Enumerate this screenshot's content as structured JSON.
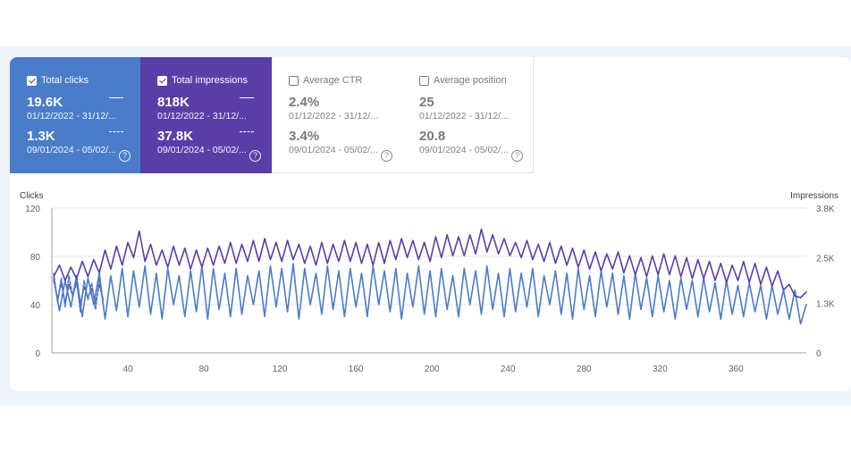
{
  "metrics": [
    {
      "label": "Total clicks",
      "checked": true,
      "value1": "19.6K",
      "date1": "01/12/2022 - 31/12/...",
      "value2": "1.3K",
      "date2": "09/01/2024 - 05/02/...",
      "help": "?"
    },
    {
      "label": "Total impressions",
      "checked": true,
      "value1": "818K",
      "date1": "01/12/2022 - 31/12/...",
      "value2": "37.8K",
      "date2": "09/01/2024 - 05/02/...",
      "help": "?"
    },
    {
      "label": "Average CTR",
      "checked": false,
      "value1": "2.4%",
      "date1": "01/12/2022 - 31/12/...",
      "value2": "3.4%",
      "date2": "09/01/2024 - 05/02/...",
      "help": "?"
    },
    {
      "label": "Average position",
      "checked": false,
      "value1": "25",
      "date1": "01/12/2022 - 31/12/...",
      "value2": "20.8",
      "date2": "09/01/2024 - 05/02/...",
      "help": "?"
    }
  ],
  "colors": {
    "clicks": "#4a7cc9",
    "impressions": "#5a3ea8",
    "grid": "#e6e6e6"
  },
  "chart_data": {
    "type": "line",
    "left_axis": {
      "title": "Clicks",
      "ticks": [
        0,
        40,
        80,
        120
      ],
      "tick_labels": [
        "0",
        "40",
        "80",
        "120"
      ],
      "range": [
        0,
        120
      ]
    },
    "right_axis": {
      "title": "Impressions",
      "ticks": [
        0,
        1300,
        2500,
        3800
      ],
      "tick_labels": [
        "0",
        "1.3K",
        "2.5K",
        "3.8K"
      ],
      "range": [
        0,
        3800
      ]
    },
    "x_axis": {
      "range": [
        0,
        397
      ],
      "ticks": [
        40,
        80,
        120,
        160,
        200,
        240,
        280,
        320,
        360
      ],
      "tick_labels": [
        "40",
        "80",
        "120",
        "160",
        "200",
        "240",
        "280",
        "320",
        "360"
      ]
    },
    "grid": true,
    "series": [
      {
        "name": "Total clicks",
        "axis": "left",
        "style": "solid",
        "x": [
          1,
          4,
          7,
          10,
          13,
          16,
          19,
          22,
          25,
          28,
          31,
          34,
          37,
          40,
          43,
          46,
          49,
          52,
          55,
          58,
          61,
          64,
          67,
          70,
          73,
          76,
          79,
          82,
          85,
          88,
          91,
          94,
          97,
          100,
          103,
          106,
          109,
          112,
          115,
          118,
          121,
          124,
          127,
          130,
          133,
          136,
          139,
          142,
          145,
          148,
          151,
          154,
          157,
          160,
          163,
          166,
          169,
          172,
          175,
          178,
          181,
          184,
          187,
          190,
          193,
          196,
          199,
          202,
          205,
          208,
          211,
          214,
          217,
          220,
          223,
          226,
          229,
          232,
          235,
          238,
          241,
          244,
          247,
          250,
          253,
          256,
          259,
          262,
          265,
          268,
          271,
          274,
          277,
          280,
          283,
          286,
          289,
          292,
          295,
          298,
          301,
          304,
          307,
          310,
          313,
          316,
          319,
          322,
          325,
          328,
          331,
          334,
          337,
          340,
          343,
          346,
          349,
          352,
          355,
          358,
          361,
          364,
          367,
          370,
          373,
          376,
          379,
          382,
          385,
          388,
          391,
          394,
          397
        ],
        "values": [
          62,
          35,
          60,
          38,
          64,
          30,
          62,
          40,
          66,
          28,
          64,
          35,
          70,
          30,
          68,
          38,
          72,
          32,
          66,
          28,
          70,
          40,
          64,
          30,
          68,
          34,
          72,
          28,
          70,
          36,
          66,
          30,
          70,
          32,
          64,
          40,
          68,
          30,
          72,
          38,
          70,
          34,
          74,
          28,
          70,
          40,
          66,
          32,
          72,
          36,
          68,
          30,
          70,
          38,
          66,
          30,
          72,
          40,
          68,
          34,
          70,
          28,
          66,
          38,
          72,
          32,
          68,
          30,
          70,
          36,
          64,
          30,
          70,
          40,
          68,
          32,
          72,
          36,
          66,
          30,
          70,
          34,
          66,
          38,
          70,
          30,
          64,
          40,
          68,
          32,
          66,
          28,
          70,
          36,
          64,
          30,
          68,
          38,
          66,
          32,
          64,
          28,
          66,
          36,
          62,
          30,
          64,
          34,
          60,
          28,
          62,
          36,
          60,
          30,
          62,
          34,
          58,
          28,
          60,
          32,
          56,
          30,
          58,
          34,
          56,
          28,
          56,
          32,
          52,
          28,
          52,
          24,
          40
        ]
      },
      {
        "name": "Total impressions",
        "axis": "right",
        "style": "solid",
        "x": [
          1,
          4,
          7,
          10,
          13,
          16,
          19,
          22,
          25,
          28,
          31,
          34,
          37,
          40,
          43,
          46,
          49,
          52,
          55,
          58,
          61,
          64,
          67,
          70,
          73,
          76,
          79,
          82,
          85,
          88,
          91,
          94,
          97,
          100,
          103,
          106,
          109,
          112,
          115,
          118,
          121,
          124,
          127,
          130,
          133,
          136,
          139,
          142,
          145,
          148,
          151,
          154,
          157,
          160,
          163,
          166,
          169,
          172,
          175,
          178,
          181,
          184,
          187,
          190,
          193,
          196,
          199,
          202,
          205,
          208,
          211,
          214,
          217,
          220,
          223,
          226,
          229,
          232,
          235,
          238,
          241,
          244,
          247,
          250,
          253,
          256,
          259,
          262,
          265,
          268,
          271,
          274,
          277,
          280,
          283,
          286,
          289,
          292,
          295,
          298,
          301,
          304,
          307,
          310,
          313,
          316,
          319,
          322,
          325,
          328,
          331,
          334,
          337,
          340,
          343,
          346,
          349,
          352,
          355,
          358,
          361,
          364,
          367,
          370,
          373,
          376,
          379,
          382,
          385,
          388,
          391,
          394,
          397
        ],
        "values": [
          2000,
          2300,
          1900,
          2250,
          1950,
          2400,
          2000,
          2450,
          2100,
          2700,
          2200,
          2800,
          2300,
          2900,
          2500,
          3200,
          2400,
          2850,
          2300,
          2700,
          2250,
          2800,
          2300,
          2750,
          2200,
          2700,
          2250,
          2750,
          2300,
          2800,
          2350,
          2900,
          2350,
          2850,
          2400,
          2950,
          2400,
          3000,
          2450,
          2900,
          2400,
          2950,
          2450,
          2850,
          2350,
          2800,
          2300,
          2900,
          2350,
          2850,
          2400,
          2950,
          2400,
          2900,
          2350,
          2850,
          2300,
          2900,
          2350,
          2950,
          2450,
          3000,
          2500,
          2950,
          2450,
          2900,
          2400,
          3050,
          2500,
          3100,
          2550,
          3050,
          2550,
          3100,
          2600,
          3250,
          2650,
          3100,
          2600,
          3000,
          2550,
          2900,
          2500,
          2950,
          2450,
          2850,
          2400,
          2900,
          2350,
          2800,
          2300,
          2750,
          2250,
          2700,
          2200,
          2650,
          2150,
          2600,
          2200,
          2650,
          2100,
          2550,
          2050,
          2500,
          2000,
          2550,
          2050,
          2600,
          2050,
          2550,
          2000,
          2500,
          1950,
          2450,
          1950,
          2400,
          1900,
          2350,
          1850,
          2300,
          1900,
          2400,
          1850,
          2350,
          1800,
          2250,
          1750,
          2150,
          1650,
          1800,
          1500,
          1450,
          1600
        ]
      },
      {
        "name": "Total clicks (09/01/2024 - 05/02/2024)",
        "axis": "left",
        "style": "dashed",
        "x": [
          1,
          3,
          5,
          7,
          9,
          11,
          13,
          15,
          17,
          19,
          21,
          23,
          25,
          27
        ],
        "values": [
          66,
          42,
          62,
          38,
          64,
          46,
          62,
          34,
          60,
          44,
          58,
          36,
          62,
          40
        ]
      },
      {
        "name": "Total impressions (09/01/2024 - 05/02/2024)",
        "axis": "right",
        "style": "dashed",
        "x": [
          1,
          3,
          5,
          7,
          9,
          11,
          13,
          15,
          17,
          19,
          21,
          23,
          25,
          27
        ],
        "values": [
          1900,
          1400,
          1850,
          1300,
          1800,
          1500,
          1850,
          1250,
          1750,
          1450,
          1700,
          1300,
          1800,
          1400
        ]
      }
    ]
  }
}
